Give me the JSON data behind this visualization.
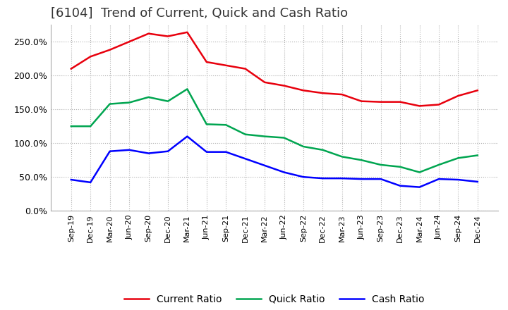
{
  "title": "[6104]  Trend of Current, Quick and Cash Ratio",
  "x_labels": [
    "Sep-19",
    "Dec-19",
    "Mar-20",
    "Jun-20",
    "Sep-20",
    "Dec-20",
    "Mar-21",
    "Jun-21",
    "Sep-21",
    "Dec-21",
    "Mar-22",
    "Jun-22",
    "Sep-22",
    "Dec-22",
    "Mar-23",
    "Jun-23",
    "Sep-23",
    "Dec-23",
    "Mar-24",
    "Jun-24",
    "Sep-24",
    "Dec-24"
  ],
  "current_ratio": [
    210,
    228,
    238,
    250,
    262,
    258,
    264,
    220,
    215,
    210,
    190,
    185,
    178,
    174,
    172,
    162,
    161,
    161,
    155,
    157,
    170,
    178
  ],
  "quick_ratio": [
    125,
    125,
    158,
    160,
    168,
    162,
    180,
    128,
    127,
    113,
    110,
    108,
    95,
    90,
    80,
    75,
    68,
    65,
    57,
    68,
    78,
    82
  ],
  "cash_ratio": [
    46,
    42,
    88,
    90,
    85,
    88,
    110,
    87,
    87,
    77,
    67,
    57,
    50,
    48,
    48,
    47,
    47,
    37,
    35,
    47,
    46,
    43
  ],
  "current_color": "#e8000d",
  "quick_color": "#00a550",
  "cash_color": "#0000ff",
  "ylim": [
    0,
    275
  ],
  "yticks": [
    0,
    50,
    100,
    150,
    200,
    250
  ],
  "background_color": "#ffffff",
  "grid_color": "#b0b0b0",
  "title_fontsize": 13,
  "tick_fontsize": 8,
  "ytick_fontsize": 9
}
